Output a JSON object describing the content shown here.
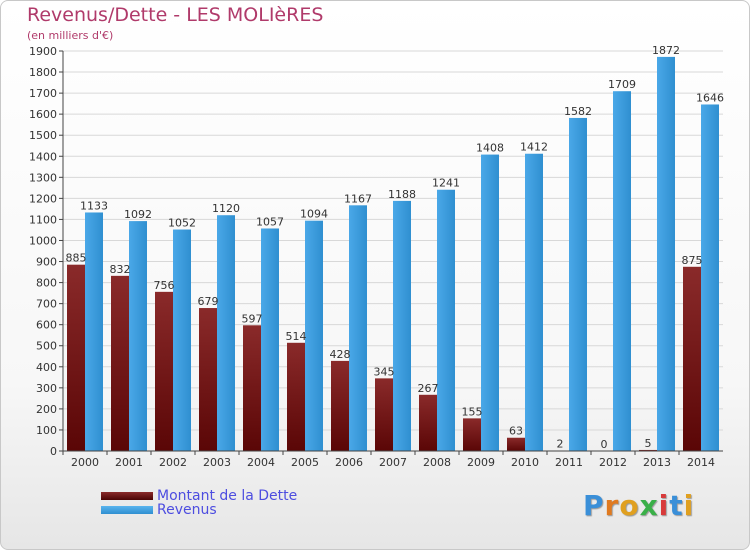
{
  "title": "Revenus/Dette - LES MOLIèRES",
  "subtitle": "(en milliers d'€)",
  "logo": "Proxiti",
  "colors": {
    "title": "#b03a6a",
    "dette": "#7a1a1a",
    "revenus": "#3fa0e0",
    "legend_text": "#4d4de0",
    "axis": "#333333",
    "grid": "#dcdcdc"
  },
  "legend": [
    {
      "label": "Montant de la Dette",
      "color": "#6a1212"
    },
    {
      "label": "Revenus",
      "color": "#3fa0e0"
    }
  ],
  "chart_data": {
    "type": "bar",
    "categories": [
      "2000",
      "2001",
      "2002",
      "2003",
      "2004",
      "2005",
      "2006",
      "2007",
      "2008",
      "2009",
      "2010",
      "2011",
      "2012",
      "2013",
      "2014"
    ],
    "series": [
      {
        "name": "Montant de la Dette",
        "values": [
          885,
          832,
          756,
          679,
          597,
          514,
          428,
          345,
          267,
          155,
          63,
          2,
          0,
          5,
          875
        ]
      },
      {
        "name": "Revenus",
        "values": [
          1133,
          1092,
          1052,
          1120,
          1057,
          1094,
          1167,
          1188,
          1241,
          1408,
          1412,
          1582,
          1709,
          1872,
          1646
        ]
      }
    ],
    "ylim": [
      0,
      1900
    ],
    "yticks": [
      0,
      100,
      200,
      300,
      400,
      500,
      600,
      700,
      800,
      900,
      1000,
      1100,
      1200,
      1300,
      1400,
      1500,
      1600,
      1700,
      1800,
      1900
    ],
    "grid": true,
    "legend_position": "bottom-left"
  }
}
